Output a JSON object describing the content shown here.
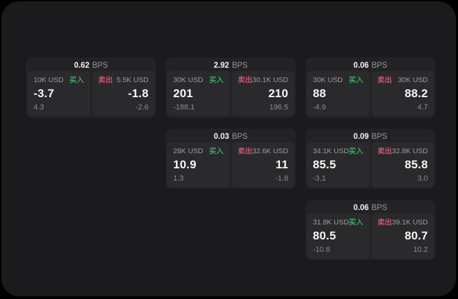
{
  "labels": {
    "bps_unit": "BPS",
    "buy": "买入",
    "sell": "卖出"
  },
  "colors": {
    "page_bg": "#000000",
    "panel_bg": "#1b1b1d",
    "card_bg": "#232326",
    "tile_bg": "#2a2a2d",
    "buy_green": "#3ba55f",
    "sell_red": "#c4566e",
    "primary_text": "#f7f7f8",
    "muted_text": "#9b9da1"
  },
  "cards": [
    {
      "bps": "0.62",
      "buy": {
        "amount": "10K USD",
        "price": "-3.7",
        "delta": "4.3"
      },
      "sell": {
        "amount": "5.5K USD",
        "price": "-1.8",
        "delta": "-2.6"
      }
    },
    {
      "bps": "2.92",
      "buy": {
        "amount": "30K USD",
        "price": "201",
        "delta": "-188.1"
      },
      "sell": {
        "amount": "30.1K USD",
        "price": "210",
        "delta": "196.5"
      }
    },
    {
      "bps": "0.06",
      "buy": {
        "amount": "30K USD",
        "price": "88",
        "delta": "-4.9"
      },
      "sell": {
        "amount": "30K USD",
        "price": "88.2",
        "delta": "4.7"
      }
    },
    {
      "bps": "0.03",
      "buy": {
        "amount": "28K USD",
        "price": "10.9",
        "delta": "1.3"
      },
      "sell": {
        "amount": "32.6K USD",
        "price": "11",
        "delta": "-1.8"
      }
    },
    {
      "bps": "0.09",
      "buy": {
        "amount": "34.1K USD",
        "price": "85.5",
        "delta": "-3.1"
      },
      "sell": {
        "amount": "32.8K USD",
        "price": "85.8",
        "delta": "3.0"
      }
    },
    {
      "bps": "0.06",
      "buy": {
        "amount": "31.8K USD",
        "price": "80.5",
        "delta": "-10.8"
      },
      "sell": {
        "amount": "39.1K USD",
        "price": "80.7",
        "delta": "10.2"
      }
    }
  ]
}
